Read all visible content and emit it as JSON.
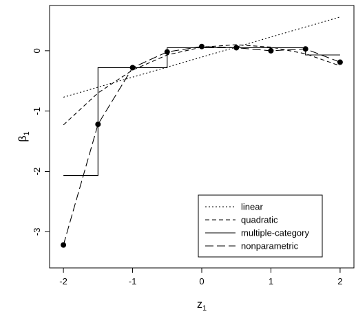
{
  "chart_data": {
    "type": "line",
    "title": "",
    "xlabel": "z",
    "xlabel_sub": "1",
    "ylabel": "β",
    "ylabel_sub": "1",
    "xlim": [
      -2.2,
      2.2
    ],
    "ylim": [
      -3.6,
      0.75
    ],
    "x_ticks": [
      -2,
      -1,
      0,
      1,
      2
    ],
    "x_tick_labels": [
      "-2",
      "-1",
      "0",
      "1",
      "2"
    ],
    "y_ticks": [
      -3,
      -2,
      -1,
      0
    ],
    "y_tick_labels": [
      "-3",
      "-2",
      "-1",
      "0"
    ],
    "grid": false,
    "legend_position": "bottom-right",
    "series": [
      {
        "name": "linear",
        "dash": "dotted",
        "x": [
          -2,
          2
        ],
        "y": [
          -0.77,
          0.56
        ]
      },
      {
        "name": "quadratic",
        "dash": "dashed",
        "x": [
          -2,
          -1.5,
          -1,
          -0.5,
          0,
          0.5,
          1,
          1.5,
          2
        ],
        "y": [
          -1.23,
          -0.7,
          -0.32,
          -0.07,
          0.06,
          0.1,
          0.06,
          -0.05,
          -0.25
        ]
      },
      {
        "name": "multiple-category",
        "dash": "solid",
        "step": true,
        "x": [
          -2,
          -1.5,
          -1.5,
          -0.5,
          -0.5,
          1.5,
          1.5,
          2
        ],
        "y": [
          -2.07,
          -2.07,
          -0.28,
          -0.28,
          0.05,
          0.05,
          -0.07,
          -0.07
        ]
      },
      {
        "name": "nonparametric",
        "dash": "longdash",
        "x": [
          -2,
          -1.5,
          -1,
          -0.5,
          0,
          0.5,
          1,
          1.5,
          2
        ],
        "y": [
          -3.22,
          -1.22,
          -0.28,
          -0.02,
          0.07,
          0.05,
          0.0,
          0.03,
          -0.19
        ]
      }
    ],
    "points": {
      "x": [
        -2,
        -1.5,
        -1,
        -0.5,
        0,
        0.5,
        1,
        1.5,
        2
      ],
      "y": [
        -3.22,
        -1.22,
        -0.28,
        -0.02,
        0.07,
        0.05,
        0.0,
        0.03,
        -0.19
      ]
    }
  }
}
